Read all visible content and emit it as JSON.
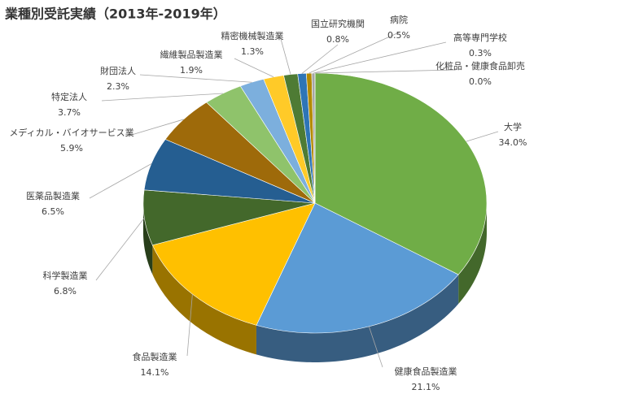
{
  "chart_data": {
    "type": "pie",
    "title": "業種別受託実績（2013年-2019年）",
    "categories": [
      "大学",
      "健康食品製造業",
      "食品製造業",
      "科学製造業",
      "医薬品製造業",
      "メディカル・バイオサービス業",
      "特定法人",
      "財団法人",
      "繊維製品製造業",
      "精密機械製造業",
      "国立研究機関",
      "病院",
      "高等専門学校",
      "化粧品・健康食品卸売"
    ],
    "values": [
      34.0,
      21.1,
      14.1,
      6.8,
      6.5,
      5.9,
      3.7,
      2.3,
      1.9,
      1.3,
      0.8,
      0.5,
      0.3,
      0.0
    ],
    "value_labels": [
      "34.0%",
      "21.1%",
      "14.1%",
      "6.8%",
      "6.5%",
      "5.9%",
      "3.7%",
      "2.3%",
      "1.9%",
      "1.3%",
      "0.8%",
      "0.5%",
      "0.3%",
      "0.0%"
    ],
    "colors": [
      "#70ad47",
      "#5b9bd5",
      "#ffc000",
      "#43682b",
      "#255e91",
      "#9e6a0a",
      "#8fc36b",
      "#7cafdd",
      "#ffca28",
      "#4e7b34",
      "#2e75b6",
      "#b38a00",
      "#a5a5a5",
      "#c9a227"
    ]
  }
}
